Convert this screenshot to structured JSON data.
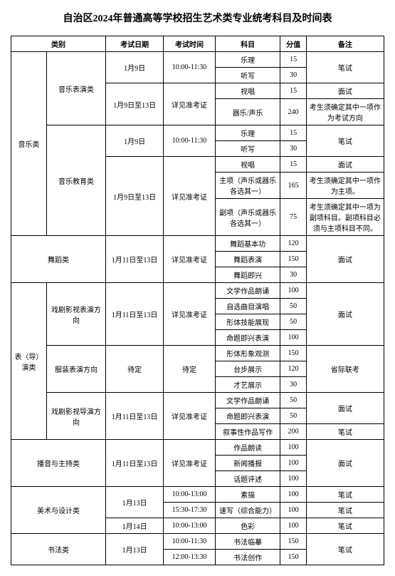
{
  "title": "自治区2024年普通高等学校招生艺术类专业统考科目及时间表",
  "headers": {
    "category": "类别",
    "date": "考试日期",
    "time": "考试时间",
    "subject": "科目",
    "score": "分值",
    "note": "备注"
  },
  "cells": {
    "c_music": "音乐类",
    "c_music_perf": "音乐表演类",
    "c_music_edu": "音乐教育类",
    "c_dance": "舞蹈类",
    "c_act": "表（导）演类",
    "c_act1": "戏剧影视表演方向",
    "c_act2": "服装表演方向",
    "c_act3": "戏剧影视导演方向",
    "c_broadcast": "播音与主持类",
    "c_art": "美术与设计类",
    "c_calli": "书法类",
    "d_1_9": "1月9日",
    "d_1_9_13": "1月9日至13日",
    "d_1_11_13": "1月11日至13日",
    "d_1_13": "1月13日",
    "d_1_14": "1月14日",
    "d_tbd": "待定",
    "t_10_1130": "10:00-11:30",
    "t_see": "详见准考证",
    "t_tbd": "待定",
    "t_10_13": "10:00-13:00",
    "t_1530_1730": "15:30-17:30",
    "t_10_1130b": "10:00-11:30",
    "t_12_1330": "12:00-13:30",
    "s_yueli": "乐理",
    "s_tingxie": "听写",
    "s_shichang": "视唱",
    "s_qiyue": "器乐/声乐",
    "s_zhu": "主项（声乐或器乐各选其一）",
    "s_fu": "副项（声乐或器乐各选其一）",
    "s_dance_base": "舞蹈基本功",
    "s_dance_perf": "舞蹈表演",
    "s_dance_imp": "舞蹈即兴",
    "s_lit": "文学作品朗诵",
    "s_sing": "自选曲目演唱",
    "s_shape": "形体技能展现",
    "s_imp": "命题即兴表演",
    "s_body": "形体形象观测",
    "s_stage": "台步展示",
    "s_talent": "才艺展示",
    "s_story": "叙事性作品写作",
    "s_work": "作品朗读",
    "s_news": "新闻播报",
    "s_talk": "话题评述",
    "s_sketch": "素描",
    "s_express": "速写（综合能力）",
    "s_color": "色彩",
    "s_calli_lin": "书法临摹",
    "s_calli_chuang": "书法创作",
    "v15": "15",
    "v30": "30",
    "v240": "240",
    "v165": "165",
    "v75": "75",
    "v120": "120",
    "v150": "150",
    "v100": "100",
    "v50": "50",
    "v200": "200",
    "n_bishi": "笔试",
    "n_mianshi": "面试",
    "n_exam_dir": "考生须确定其中一项作为考试方向",
    "n_main": "考生须确定其中一项作为主项。",
    "n_fu": "考生须确定其中一项为副项科目。副项科目必须与主项科目不同。",
    "n_prov": "省际联考"
  }
}
